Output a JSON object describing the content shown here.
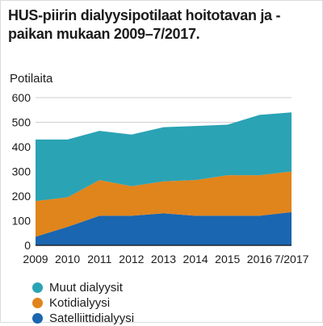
{
  "title": "HUS-piirin dialyysipotilaat hoitotavan ja -paikan mukaan 2009–7/2017.",
  "chart_data": {
    "type": "area",
    "stacked": true,
    "title": "HUS-piirin dialyysipotilaat hoitotavan ja -paikan mukaan 2009–7/2017.",
    "ylabel": "Potilaita",
    "xlabel": "",
    "categories": [
      "2009",
      "2010",
      "2011",
      "2012",
      "2013",
      "2014",
      "2015",
      "2016",
      "7/2017"
    ],
    "ylim": [
      0,
      600
    ],
    "yticks": [
      0,
      100,
      200,
      300,
      400,
      500,
      600
    ],
    "grid": true,
    "legend_position": "bottom",
    "series": [
      {
        "name": "Satelliittidialyysi",
        "color": "#1a66b0",
        "values": [
          35,
          75,
          120,
          120,
          130,
          120,
          120,
          120,
          135
        ]
      },
      {
        "name": "Kotidialyysi",
        "color": "#e0841c",
        "values": [
          145,
          120,
          145,
          120,
          130,
          145,
          165,
          165,
          165
        ]
      },
      {
        "name": "Muut dialyysit",
        "color": "#2aa3b4",
        "values": [
          250,
          235,
          200,
          210,
          220,
          220,
          205,
          245,
          240
        ]
      }
    ]
  }
}
